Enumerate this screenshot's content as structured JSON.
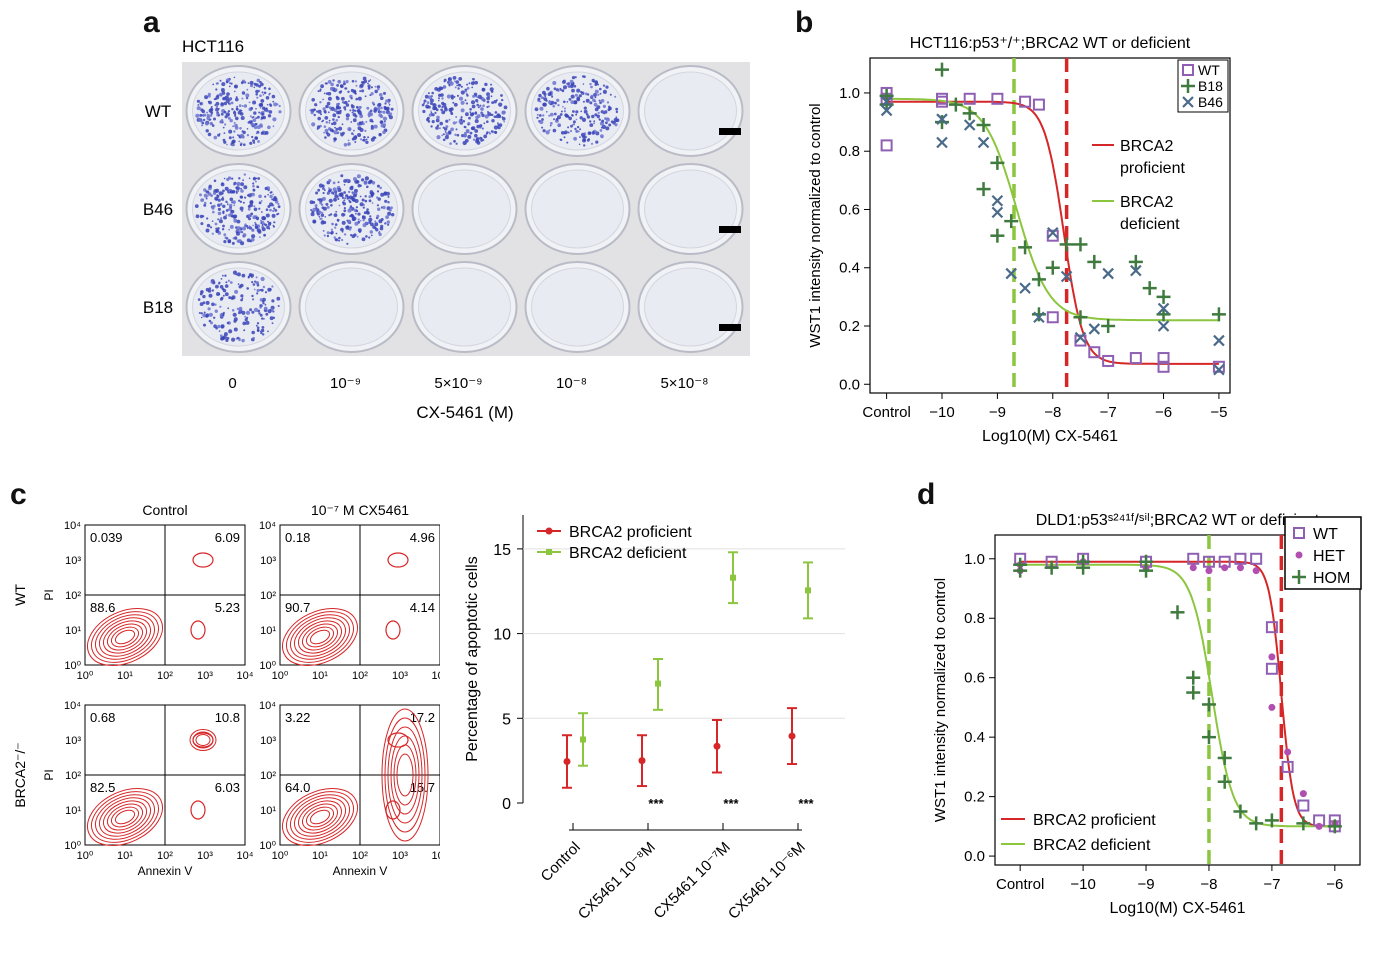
{
  "panels": {
    "a": "a",
    "b": "b",
    "c": "c",
    "d": "d"
  },
  "panel_a": {
    "title": "HCT116",
    "row_labels": [
      "WT",
      "B46",
      "B18"
    ],
    "col_labels": [
      "0",
      "10⁻⁹",
      "5×10⁻⁹",
      "10⁻⁸",
      "5×10⁻⁸"
    ],
    "xlabel": "CX-5461 (M)",
    "colony_density": [
      [
        1,
        1,
        1,
        0.9,
        0
      ],
      [
        1,
        1,
        0,
        0,
        0
      ],
      [
        0.7,
        0,
        0,
        0,
        0
      ]
    ]
  },
  "panel_c": {
    "col_titles": [
      "Control",
      "10⁻⁷ M CX5461"
    ],
    "row_labels": [
      "WT",
      "BRCA2⁻/⁻"
    ],
    "flow_ylabel": "PI",
    "flow_xlabel": "Annexin V",
    "ticks": [
      "10⁰",
      "10¹",
      "10²",
      "10³",
      "10⁴"
    ],
    "quadrants": [
      [
        "0.039",
        "6.09",
        "88.6",
        "5.23"
      ],
      [
        "0.18",
        "4.96",
        "90.7",
        "4.14"
      ],
      [
        "0.68",
        "10.8",
        "82.5",
        "6.03"
      ],
      [
        "3.22",
        "17.2",
        "64.0",
        "15.7"
      ]
    ]
  },
  "chart_data": [
    {
      "id": "b",
      "type": "scatter",
      "title": "HCT116:p53⁺/⁺;BRCA2 WT or deficient",
      "xlabel": "Log10(M) CX-5461",
      "ylabel": "WST1 intensity normalized to control",
      "xticks": [
        "Control",
        "−10",
        "−9",
        "−8",
        "−7",
        "−6",
        "−5"
      ],
      "xtick_values": [
        -11,
        -10,
        -9,
        -8,
        -7,
        -6,
        -5
      ],
      "xlim": [
        -11.3,
        -4.8
      ],
      "ylim": [
        -0.03,
        1.12
      ],
      "yticks": [
        "0.0",
        "0.2",
        "0.4",
        "0.6",
        "0.8",
        "1.0"
      ],
      "ytick_values": [
        0,
        0.2,
        0.4,
        0.6,
        0.8,
        1.0
      ],
      "legend_markers": [
        "WT",
        "B18",
        "B46"
      ],
      "legend_lines": [
        "BRCA2\nproficient",
        "BRCA2\ndeficient"
      ],
      "colors": {
        "proficient": "#d62728",
        "deficient": "#8cc63f",
        "wt": "#8e5fb3",
        "b18": "#3f7a3f",
        "b46": "#4a6a8a"
      },
      "vlines": [
        {
          "x": -8.7,
          "color": "#8cc63f"
        },
        {
          "x": -7.75,
          "color": "#d62728"
        }
      ],
      "curves": [
        {
          "name": "BRCA2 proficient",
          "top": 0.97,
          "bottom": 0.07,
          "ec50": -7.8,
          "hill": 2.5,
          "color": "#d62728"
        },
        {
          "name": "BRCA2 deficient",
          "top": 0.98,
          "bottom": 0.22,
          "ec50": -8.65,
          "hill": 1.5,
          "color": "#8cc63f"
        }
      ],
      "series": [
        {
          "name": "WT",
          "marker": "square",
          "points": [
            [
              -11,
              1.0
            ],
            [
              -11,
              0.98
            ],
            [
              -11,
              0.82
            ],
            [
              -10,
              0.98
            ],
            [
              -10,
              0.97
            ],
            [
              -9.5,
              0.98
            ],
            [
              -9,
              0.98
            ],
            [
              -8.5,
              0.97
            ],
            [
              -8.25,
              0.96
            ],
            [
              -8,
              0.51
            ],
            [
              -8,
              0.23
            ],
            [
              -7.5,
              0.15
            ],
            [
              -7.25,
              0.11
            ],
            [
              -7,
              0.08
            ],
            [
              -6.5,
              0.09
            ],
            [
              -6,
              0.09
            ],
            [
              -6,
              0.06
            ],
            [
              -5,
              0.06
            ]
          ]
        },
        {
          "name": "B18",
          "marker": "plus",
          "points": [
            [
              -11,
              0.99
            ],
            [
              -11,
              0.96
            ],
            [
              -10,
              1.08
            ],
            [
              -10,
              0.9
            ],
            [
              -9.75,
              0.96
            ],
            [
              -9.5,
              0.93
            ],
            [
              -9.25,
              0.89
            ],
            [
              -9.25,
              0.67
            ],
            [
              -9,
              0.76
            ],
            [
              -9,
              0.51
            ],
            [
              -8.75,
              0.56
            ],
            [
              -8.5,
              0.47
            ],
            [
              -8.25,
              0.36
            ],
            [
              -8.25,
              0.24
            ],
            [
              -8,
              0.4
            ],
            [
              -7.75,
              0.48
            ],
            [
              -7.5,
              0.48
            ],
            [
              -7.5,
              0.23
            ],
            [
              -7.25,
              0.42
            ],
            [
              -7,
              0.2
            ],
            [
              -6.5,
              0.42
            ],
            [
              -6.25,
              0.33
            ],
            [
              -6,
              0.3
            ],
            [
              -6,
              0.24
            ],
            [
              -5,
              0.24
            ]
          ]
        },
        {
          "name": "B46",
          "marker": "x",
          "points": [
            [
              -11,
              0.97
            ],
            [
              -11,
              0.94
            ],
            [
              -10,
              0.83
            ],
            [
              -10,
              0.91
            ],
            [
              -9.5,
              0.89
            ],
            [
              -9.25,
              0.83
            ],
            [
              -9,
              0.63
            ],
            [
              -9,
              0.59
            ],
            [
              -8.75,
              0.38
            ],
            [
              -8.5,
              0.33
            ],
            [
              -8.25,
              0.23
            ],
            [
              -8,
              0.52
            ],
            [
              -7.75,
              0.37
            ],
            [
              -7.5,
              0.16
            ],
            [
              -7.25,
              0.19
            ],
            [
              -7,
              0.38
            ],
            [
              -6.5,
              0.39
            ],
            [
              -6,
              0.26
            ],
            [
              -6,
              0.2
            ],
            [
              -5,
              0.15
            ],
            [
              -5,
              0.05
            ]
          ]
        }
      ]
    },
    {
      "id": "c",
      "type": "scatter",
      "title": "",
      "xlabel": "",
      "ylabel": "Percentage of apoptotic cells",
      "categories": [
        "Control",
        "CX5461 10⁻⁸M",
        "CX5461 10⁻⁷M",
        "CX5461 10⁻⁶M"
      ],
      "ylim": [
        0,
        17
      ],
      "yticks": [
        "0",
        "5",
        "10",
        "15"
      ],
      "ytick_values": [
        0,
        5,
        10,
        15
      ],
      "grid": true,
      "legend": [
        "BRCA2 proficient",
        "BRCA2 deficient"
      ],
      "significance": [
        "",
        "***",
        "***",
        "***"
      ],
      "series": [
        {
          "name": "BRCA2 proficient",
          "color": "#d62728",
          "values": [
            2.45,
            2.5,
            3.35,
            3.95
          ],
          "lower": [
            0.9,
            1.0,
            1.8,
            2.3
          ],
          "upper": [
            4.0,
            4.0,
            4.9,
            5.6
          ]
        },
        {
          "name": "BRCA2 deficient",
          "color": "#8cc63f",
          "values": [
            3.75,
            7.05,
            13.3,
            12.55
          ],
          "lower": [
            2.2,
            5.5,
            11.8,
            10.9
          ],
          "upper": [
            5.3,
            8.5,
            14.8,
            14.2
          ]
        }
      ]
    },
    {
      "id": "d",
      "type": "scatter",
      "title": "DLD1:p53ˢ²⁴¹ᶠ/ˢⁱˡ;BRCA2 WT or deficient",
      "xlabel": "Log10(M) CX-5461",
      "ylabel": "WST1 intensity normalized to control",
      "xticks": [
        "Control",
        "−10",
        "−9",
        "−8",
        "−7",
        "−6"
      ],
      "xtick_values": [
        -11,
        -10,
        -9,
        -8,
        -7,
        -6
      ],
      "xlim": [
        -11.4,
        -5.6
      ],
      "ylim": [
        -0.03,
        1.08
      ],
      "yticks": [
        "0.0",
        "0.2",
        "0.4",
        "0.6",
        "0.8",
        "1.0"
      ],
      "ytick_values": [
        0,
        0.2,
        0.4,
        0.6,
        0.8,
        1.0
      ],
      "legend_markers": [
        "WT",
        "HET",
        "HOM"
      ],
      "legend_lines": [
        "BRCA2 proficient",
        "BRCA2 deficient"
      ],
      "colors": {
        "proficient": "#d62728",
        "deficient": "#8cc63f",
        "wt": "#8e5fb3",
        "het": "#b04fb0",
        "hom": "#3f7a3f"
      },
      "vlines": [
        {
          "x": -8,
          "color": "#8cc63f"
        },
        {
          "x": -6.85,
          "color": "#d62728"
        }
      ],
      "curves": [
        {
          "name": "BRCA2 proficient",
          "top": 0.99,
          "bottom": 0.1,
          "ec50": -6.85,
          "hill": 4.5,
          "color": "#d62728"
        },
        {
          "name": "BRCA2 deficient",
          "top": 0.98,
          "bottom": 0.1,
          "ec50": -7.95,
          "hill": 2.6,
          "color": "#8cc63f"
        }
      ],
      "series": [
        {
          "name": "WT",
          "marker": "square",
          "points": [
            [
              -11,
              1.0
            ],
            [
              -10.5,
              0.99
            ],
            [
              -10,
              1.0
            ],
            [
              -9,
              0.99
            ],
            [
              -8.25,
              1.0
            ],
            [
              -8,
              0.99
            ],
            [
              -7.75,
              0.99
            ],
            [
              -7.5,
              1.0
            ],
            [
              -7.25,
              1.0
            ],
            [
              -7,
              0.77
            ],
            [
              -7,
              0.63
            ],
            [
              -6.75,
              0.3
            ],
            [
              -6.5,
              0.17
            ],
            [
              -6.25,
              0.12
            ],
            [
              -6,
              0.1
            ],
            [
              -6,
              0.12
            ]
          ]
        },
        {
          "name": "HET",
          "marker": "dot",
          "points": [
            [
              -11,
              0.96
            ],
            [
              -11,
              0.98
            ],
            [
              -10,
              0.99
            ],
            [
              -9,
              0.97
            ],
            [
              -8.25,
              0.97
            ],
            [
              -8,
              0.96
            ],
            [
              -7.75,
              0.97
            ],
            [
              -7.5,
              0.97
            ],
            [
              -7.25,
              0.96
            ],
            [
              -7,
              0.67
            ],
            [
              -7,
              0.5
            ],
            [
              -6.75,
              0.35
            ],
            [
              -6.5,
              0.21
            ],
            [
              -6.25,
              0.1
            ],
            [
              -6,
              0.11
            ]
          ]
        },
        {
          "name": "HOM",
          "marker": "plus",
          "points": [
            [
              -11,
              0.98
            ],
            [
              -11,
              0.96
            ],
            [
              -10.5,
              0.97
            ],
            [
              -10,
              0.99
            ],
            [
              -10,
              0.97
            ],
            [
              -9,
              0.99
            ],
            [
              -9,
              0.96
            ],
            [
              -8.5,
              0.82
            ],
            [
              -8.25,
              0.6
            ],
            [
              -8.25,
              0.55
            ],
            [
              -8,
              0.51
            ],
            [
              -8,
              0.4
            ],
            [
              -7.75,
              0.33
            ],
            [
              -7.75,
              0.25
            ],
            [
              -7.5,
              0.15
            ],
            [
              -7.25,
              0.11
            ],
            [
              -7,
              0.12
            ],
            [
              -6.5,
              0.11
            ],
            [
              -6,
              0.1
            ]
          ]
        }
      ]
    }
  ]
}
